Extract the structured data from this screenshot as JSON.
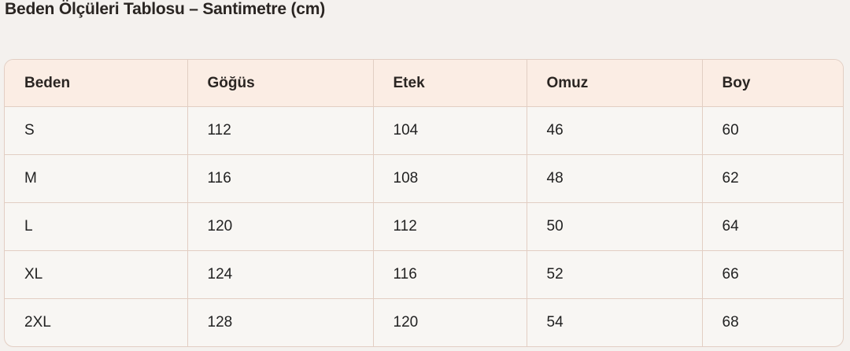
{
  "title": "Beden Ölçüleri Tablosu – Santimetre (cm)",
  "table": {
    "headers": [
      "Beden",
      "Göğüs",
      "Etek",
      "Omuz",
      "Boy"
    ],
    "rows": [
      [
        "S",
        "112",
        "104",
        "46",
        "60"
      ],
      [
        "M",
        "116",
        "108",
        "48",
        "62"
      ],
      [
        "L",
        "120",
        "112",
        "50",
        "64"
      ],
      [
        "XL",
        "124",
        "116",
        "52",
        "66"
      ],
      [
        "2XL",
        "128",
        "120",
        "54",
        "68"
      ]
    ]
  },
  "colors": {
    "header_bg": "#fbede4",
    "border": "#e2cec3",
    "page_bg": "#f4f1ee"
  }
}
